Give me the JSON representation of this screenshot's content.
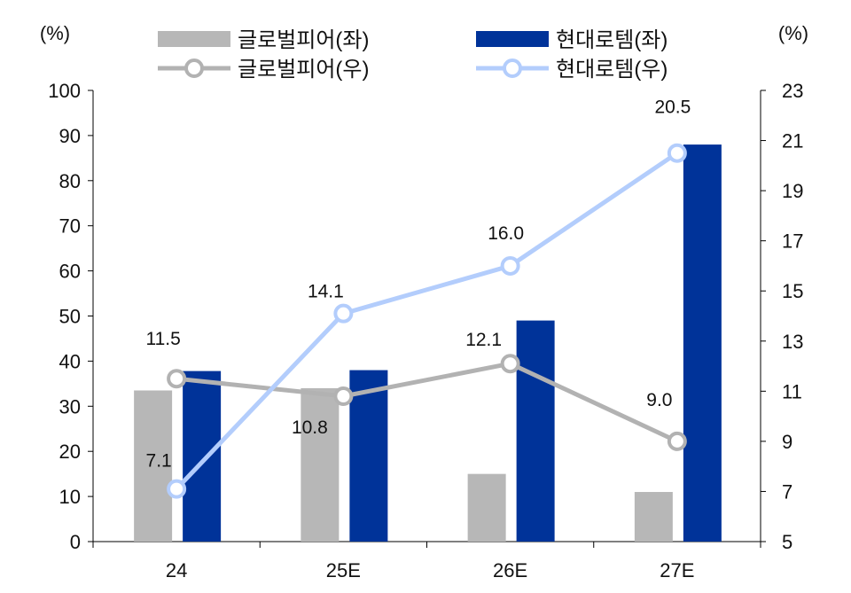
{
  "chart_data": {
    "type": "bar+line",
    "categories": [
      "24",
      "25E",
      "26E",
      "27E"
    ],
    "left_axis": {
      "unit_label": "(%)",
      "ylim": [
        0,
        100
      ],
      "ticks": [
        0,
        10,
        20,
        30,
        40,
        50,
        60,
        70,
        80,
        90,
        100
      ]
    },
    "right_axis": {
      "unit_label": "(%)",
      "ylim": [
        5,
        23
      ],
      "ticks": [
        5,
        7,
        9,
        11,
        13,
        15,
        17,
        19,
        21,
        23
      ]
    },
    "bar_series": [
      {
        "name": "글로벌피어(좌)",
        "color": "#b7b7b7",
        "values": [
          33.5,
          34.0,
          15.0,
          11.0
        ]
      },
      {
        "name": "현대로템(좌)",
        "color": "#003399",
        "values": [
          37.8,
          38.0,
          49.0,
          88.0
        ]
      }
    ],
    "line_series": [
      {
        "name": "글로벌피어(우)",
        "color": "#b2b2b2",
        "values": [
          11.5,
          10.8,
          12.1,
          9.0
        ],
        "labels": [
          "11.5",
          "10.8",
          "12.1",
          "9.0"
        ]
      },
      {
        "name": "현대로템(우)",
        "color": "#b3cdfc",
        "values": [
          7.1,
          14.1,
          16.0,
          20.5
        ],
        "labels": [
          "7.1",
          "14.1",
          "16.0",
          "20.5"
        ]
      }
    ],
    "grid": false,
    "legend_position": "top"
  }
}
